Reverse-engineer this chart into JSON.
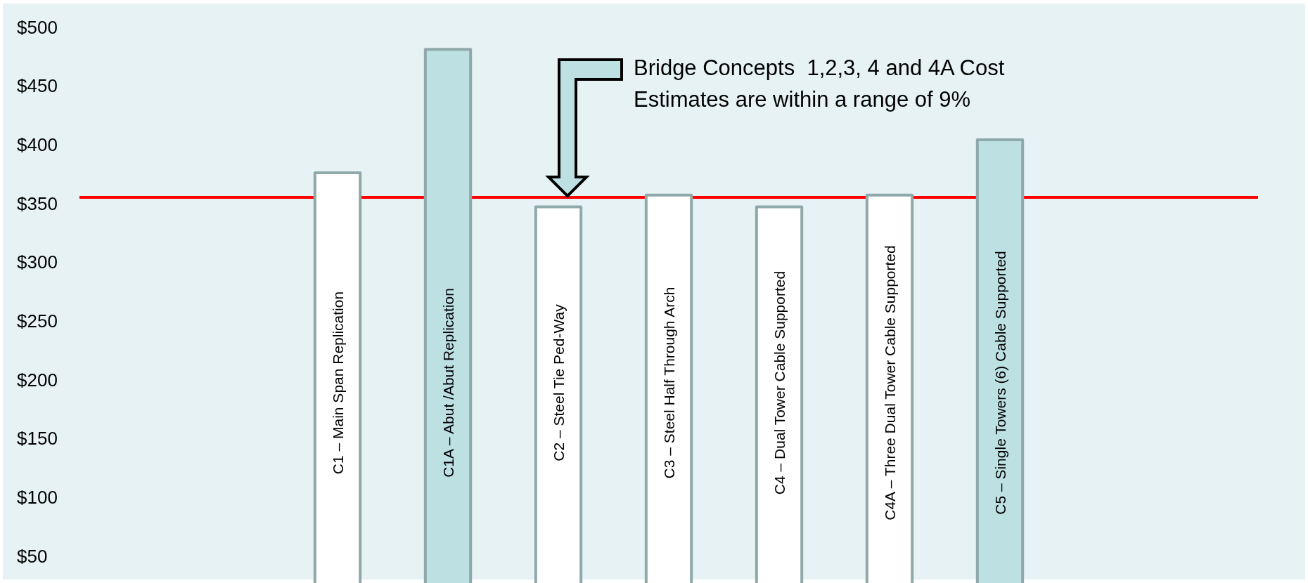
{
  "chart_data": {
    "type": "bar",
    "categories": [
      null,
      null,
      "C1 – Main Span Replication",
      "C1A – Abut /Abut Replication",
      "C2 – Steel Tie Ped-Way",
      "C3 – Steel Half Through Arch",
      "C4 – Dual Tower Cable Supported",
      "C4A – Three Dual Tower Cable Supported",
      "C5 – Single Towers (6) Cable Supported",
      null,
      null
    ],
    "values": [
      null,
      null,
      376,
      481,
      347,
      357,
      347,
      357,
      404,
      null,
      null
    ],
    "colors": [
      null,
      null,
      "#ffffff",
      "#bde0e3",
      "#ffffff",
      "#ffffff",
      "#ffffff",
      "#ffffff",
      "#bde0e3",
      null,
      null
    ],
    "ylim": [
      30,
      520
    ],
    "yticks": [
      {
        "value": 50,
        "label": "$50"
      },
      {
        "value": 100,
        "label": "$100"
      },
      {
        "value": 150,
        "label": "$150"
      },
      {
        "value": 200,
        "label": "$200"
      },
      {
        "value": 250,
        "label": "$250"
      },
      {
        "value": 300,
        "label": "$300"
      },
      {
        "value": 350,
        "label": "$350"
      },
      {
        "value": 400,
        "label": "$400"
      },
      {
        "value": 450,
        "label": "$450"
      },
      {
        "value": 500,
        "label": "$500"
      }
    ],
    "grid": false,
    "ref_lines": [
      {
        "axis": "y",
        "value": 355,
        "color": "#ff0000"
      }
    ],
    "annotations": [
      "Bridge Concepts  1,2,3, 4 and 4A Cost Estimates are within a range of 9%"
    ]
  }
}
